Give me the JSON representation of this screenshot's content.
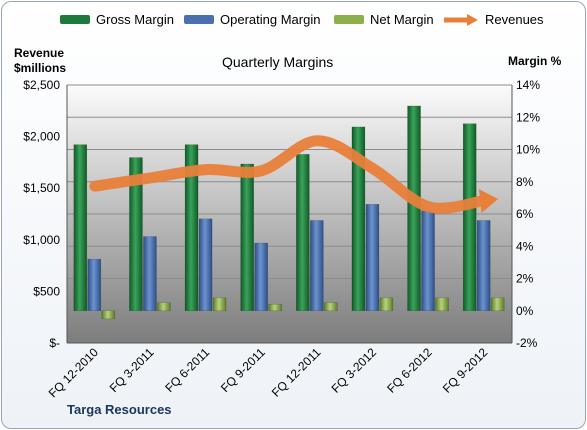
{
  "chart_data": {
    "type": "bar",
    "title": "Quarterly Margins",
    "company": "Targa Resources",
    "left_axis_label_line1": "Revenue",
    "left_axis_label_line2": "$millions",
    "right_axis_label": "Margin %",
    "categories": [
      "FQ 12-2010",
      "FQ 3-2011",
      "FQ 6-2011",
      "FQ 9-2011",
      "FQ 12-2011",
      "FQ 3-2012",
      "FQ 6-2012",
      "FQ 9-2012"
    ],
    "left_axis": {
      "range": [
        0,
        2500
      ],
      "ticks": [
        "$-",
        "$500",
        "$1,000",
        "$1,500",
        "$2,000",
        "$2,500"
      ]
    },
    "right_axis": {
      "range": [
        -2,
        14
      ],
      "ticks": [
        "-2%",
        "0%",
        "2%",
        "4%",
        "6%",
        "8%",
        "10%",
        "12%",
        "14%"
      ]
    },
    "series": [
      {
        "name": "Gross Margin",
        "axis": "right",
        "kind": "bar",
        "color": "#1e7a3c",
        "values": [
          10.3,
          9.5,
          10.3,
          9.1,
          9.7,
          11.4,
          12.7,
          11.6
        ]
      },
      {
        "name": "Operating Margin",
        "axis": "right",
        "kind": "bar",
        "color": "#4a70ad",
        "values": [
          3.2,
          4.6,
          5.7,
          4.2,
          5.6,
          6.6,
          6.2,
          5.6
        ]
      },
      {
        "name": "Net Margin",
        "axis": "right",
        "kind": "bar",
        "color": "#8db04a",
        "values": [
          -0.5,
          0.5,
          0.8,
          0.4,
          0.5,
          0.8,
          0.8,
          0.8
        ]
      },
      {
        "name": "Revenues",
        "axis": "left",
        "kind": "line",
        "color": "#e8803a",
        "values": [
          1520,
          1600,
          1680,
          1670,
          1960,
          1690,
          1320,
          1380
        ]
      }
    ],
    "grid": true,
    "legend_position": "top"
  }
}
